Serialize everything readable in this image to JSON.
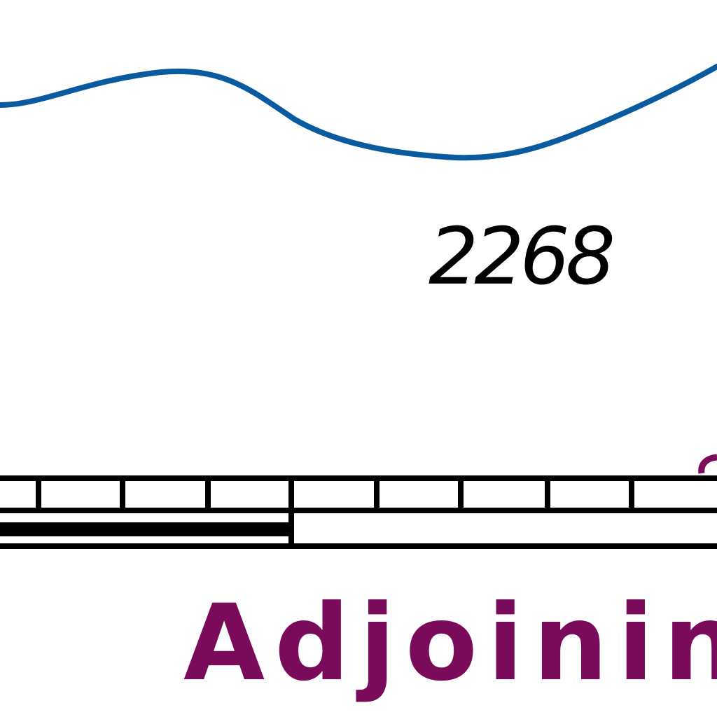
{
  "map": {
    "elevation_label": "2268",
    "region_label": "Adjoining",
    "colors": {
      "contour_line": "#0a5aa0",
      "region_label": "#7a0a5a",
      "scale_bar": "#000000",
      "background": "#ffffff"
    }
  }
}
